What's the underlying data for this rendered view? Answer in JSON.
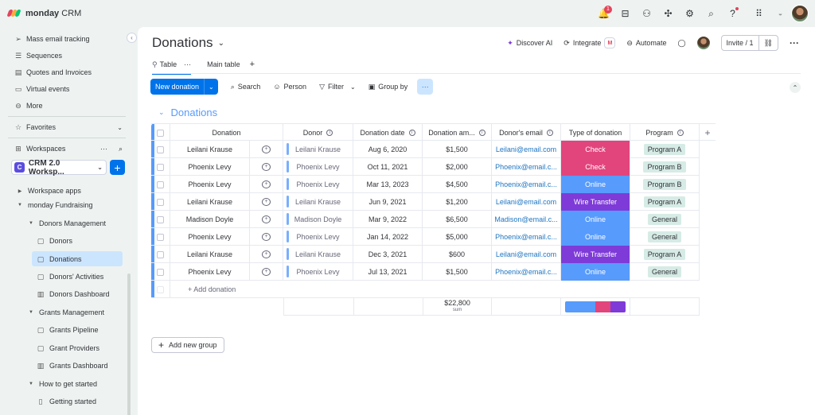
{
  "app": {
    "brand_bold": "monday",
    "brand_light": "CRM",
    "notification_count": "1"
  },
  "sidebar": {
    "items": [
      {
        "label": "Mass email tracking",
        "icon": "send-icon"
      },
      {
        "label": "Sequences",
        "icon": "sequence-icon"
      },
      {
        "label": "Quotes and Invoices",
        "icon": "invoice-icon"
      },
      {
        "label": "Virtual events",
        "icon": "video-icon"
      },
      {
        "label": "More",
        "icon": "more-circle-icon"
      }
    ],
    "favorites": "Favorites",
    "workspaces": "Workspaces",
    "workspace_letter": "C",
    "workspace_name": "CRM 2.0 Worksp...",
    "tree": [
      {
        "label": "Workspace apps"
      },
      {
        "label": "monday Fundraising"
      },
      {
        "label": "Donors Management"
      },
      {
        "label": "Donors"
      },
      {
        "label": "Donations"
      },
      {
        "label": "Donors' Activities"
      },
      {
        "label": "Donors Dashboard"
      },
      {
        "label": "Grants Management"
      },
      {
        "label": "Grants Pipeline"
      },
      {
        "label": "Grant Providers"
      },
      {
        "label": "Grants Dashboard"
      },
      {
        "label": "How to get started"
      },
      {
        "label": "Getting started"
      }
    ]
  },
  "header": {
    "title": "Donations",
    "discover_ai": "Discover AI",
    "integrate": "Integrate",
    "automate": "Automate",
    "invite": "Invite / 1"
  },
  "tabs": [
    {
      "label": "Table"
    },
    {
      "label": "Main table"
    }
  ],
  "toolbar": {
    "new_label": "New donation",
    "search": "Search",
    "person": "Person",
    "filter": "Filter",
    "group_by": "Group by"
  },
  "group": {
    "title": "Donations"
  },
  "table": {
    "columns": [
      "Donation",
      "Donor",
      "Donation date",
      "Donation am...",
      "Donor's email",
      "Type of donation",
      "Program"
    ],
    "rows": [
      {
        "donation": "Leilani Krause",
        "donor": "Leilani Krause",
        "date": "Aug 6, 2020",
        "amount": "$1,500",
        "email": "Leilani@email.com",
        "type": "Check",
        "program": "Program A"
      },
      {
        "donation": "Phoenix Levy",
        "donor": "Phoenix Levy",
        "date": "Oct 11, 2021",
        "amount": "$2,000",
        "email": "Phoenix@email.c...",
        "type": "Check",
        "program": "Program B"
      },
      {
        "donation": "Phoenix Levy",
        "donor": "Phoenix Levy",
        "date": "Mar 13, 2023",
        "amount": "$4,500",
        "email": "Phoenix@email.c...",
        "type": "Online",
        "program": "Program B"
      },
      {
        "donation": "Leilani Krause",
        "donor": "Leilani Krause",
        "date": "Jun 9, 2021",
        "amount": "$1,200",
        "email": "Leilani@email.com",
        "type": "Wire Transfer",
        "program": "Program A"
      },
      {
        "donation": "Madison Doyle",
        "donor": "Madison Doyle",
        "date": "Mar 9, 2022",
        "amount": "$6,500",
        "email": "Madison@email.c...",
        "type": "Online",
        "program": "General"
      },
      {
        "donation": "Phoenix Levy",
        "donor": "Phoenix Levy",
        "date": "Jan 14, 2022",
        "amount": "$5,000",
        "email": "Phoenix@email.c...",
        "type": "Online",
        "program": "General"
      },
      {
        "donation": "Leilani Krause",
        "donor": "Leilani Krause",
        "date": "Dec 3, 2021",
        "amount": "$600",
        "email": "Leilani@email.com",
        "type": "Wire Transfer",
        "program": "Program A"
      },
      {
        "donation": "Phoenix Levy",
        "donor": "Phoenix Levy",
        "date": "Jul 13, 2021",
        "amount": "$1,500",
        "email": "Phoenix@email.c...",
        "type": "Online",
        "program": "General"
      }
    ],
    "add_item": "+ Add donation",
    "sum_value": "$22,800",
    "sum_label": "sum",
    "type_colors": {
      "Check": "#e2447c",
      "Online": "#579bfc",
      "Wire Transfer": "#7e3bd8"
    },
    "type_distribution": [
      {
        "type": "Online",
        "fraction": 0.5
      },
      {
        "type": "Check",
        "fraction": 0.25
      },
      {
        "type": "Wire Transfer",
        "fraction": 0.25
      }
    ]
  },
  "add_group": "Add new group"
}
